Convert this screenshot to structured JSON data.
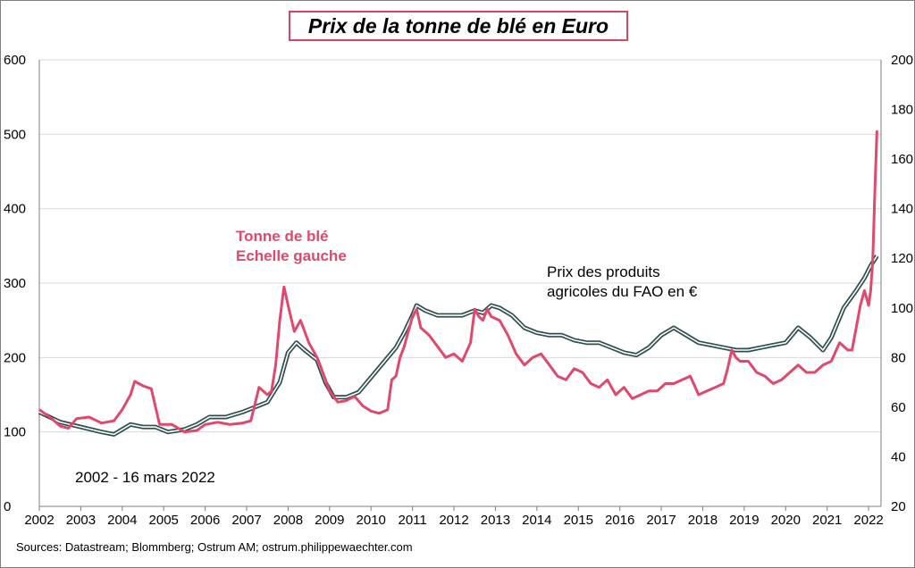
{
  "chart_data": {
    "type": "line",
    "title": "Prix de la tonne de blé en Euro",
    "period_label": "2002 - 16 mars 2022",
    "source": "Sources: Datastream; Blommberg;  Ostrum AM; ostrum.philippewaechter.com",
    "x_ticks": [
      "2002",
      "2003",
      "2004",
      "2005",
      "2006",
      "2007",
      "2008",
      "2009",
      "2010",
      "2011",
      "2012",
      "2013",
      "2014",
      "2015",
      "2016",
      "2017",
      "2018",
      "2019",
      "2020",
      "2021",
      "2022"
    ],
    "xlim": [
      2002,
      2022.3
    ],
    "y_left": {
      "ylim": [
        0,
        600
      ],
      "ticks": [
        "0",
        "100",
        "200",
        "300",
        "400",
        "500",
        "600"
      ]
    },
    "y_right": {
      "ylim": [
        20,
        200
      ],
      "ticks": [
        "20",
        "40",
        "60",
        "80",
        "100",
        "120",
        "140",
        "160",
        "180",
        "200"
      ]
    },
    "grid": true,
    "colors": {
      "wheat": "#e0486c",
      "fao_outer": "#2f4f4f",
      "fao_inner": "#ffffff",
      "title_border": "#d94466",
      "grid": "#d9d9d9"
    },
    "series": [
      {
        "name": "Tonne de blé",
        "axis": "left",
        "label_lines": [
          "Tonne de blé",
          "Echelle gauche"
        ],
        "x": [
          2002.0,
          2002.3,
          2002.5,
          2002.7,
          2002.9,
          2003.2,
          2003.5,
          2003.8,
          2004.0,
          2004.2,
          2004.3,
          2004.5,
          2004.7,
          2004.9,
          2005.2,
          2005.5,
          2005.8,
          2006.0,
          2006.3,
          2006.6,
          2006.9,
          2007.1,
          2007.3,
          2007.5,
          2007.6,
          2007.7,
          2007.8,
          2007.9,
          2008.0,
          2008.15,
          2008.3,
          2008.5,
          2008.7,
          2008.9,
          2009.0,
          2009.2,
          2009.4,
          2009.6,
          2009.8,
          2010.0,
          2010.2,
          2010.4,
          2010.5,
          2010.6,
          2010.7,
          2010.8,
          2010.9,
          2011.0,
          2011.1,
          2011.2,
          2011.4,
          2011.6,
          2011.8,
          2012.0,
          2012.2,
          2012.4,
          2012.5,
          2012.6,
          2012.7,
          2012.8,
          2012.9,
          2013.1,
          2013.3,
          2013.5,
          2013.7,
          2013.9,
          2014.1,
          2014.3,
          2014.5,
          2014.7,
          2014.9,
          2015.1,
          2015.3,
          2015.5,
          2015.7,
          2015.9,
          2016.1,
          2016.3,
          2016.5,
          2016.7,
          2016.9,
          2017.1,
          2017.3,
          2017.5,
          2017.7,
          2017.9,
          2018.1,
          2018.3,
          2018.5,
          2018.6,
          2018.7,
          2018.8,
          2018.9,
          2019.1,
          2019.3,
          2019.5,
          2019.7,
          2019.9,
          2020.1,
          2020.3,
          2020.5,
          2020.7,
          2020.9,
          2021.1,
          2021.3,
          2021.5,
          2021.6,
          2021.7,
          2021.8,
          2021.9,
          2022.0,
          2022.05,
          2022.1,
          2022.15,
          2022.2
        ],
        "values": [
          130,
          118,
          108,
          105,
          118,
          120,
          112,
          115,
          130,
          150,
          168,
          162,
          158,
          110,
          110,
          100,
          102,
          110,
          113,
          110,
          112,
          115,
          160,
          150,
          155,
          190,
          250,
          295,
          270,
          235,
          250,
          220,
          200,
          170,
          155,
          140,
          142,
          148,
          135,
          128,
          125,
          130,
          170,
          175,
          200,
          215,
          235,
          255,
          265,
          240,
          230,
          215,
          200,
          205,
          195,
          220,
          265,
          255,
          250,
          265,
          255,
          250,
          230,
          205,
          190,
          200,
          205,
          190,
          175,
          170,
          185,
          180,
          165,
          160,
          170,
          150,
          160,
          145,
          150,
          155,
          155,
          165,
          165,
          170,
          175,
          150,
          155,
          160,
          165,
          185,
          210,
          200,
          195,
          195,
          180,
          175,
          165,
          170,
          180,
          190,
          180,
          180,
          190,
          195,
          220,
          210,
          210,
          240,
          270,
          290,
          270,
          290,
          330,
          420,
          505
        ],
        "style": "wheat"
      },
      {
        "name": "Prix des produits agricoles du FAO en €",
        "axis": "right",
        "label_lines": [
          "Prix des produits",
          "agricoles du FAO en €"
        ],
        "x": [
          2002.0,
          2002.5,
          2003.0,
          2003.5,
          2003.8,
          2004.2,
          2004.5,
          2004.8,
          2005.1,
          2005.5,
          2005.8,
          2006.1,
          2006.5,
          2006.9,
          2007.2,
          2007.5,
          2007.8,
          2008.0,
          2008.2,
          2008.4,
          2008.7,
          2008.9,
          2009.1,
          2009.4,
          2009.7,
          2010.0,
          2010.3,
          2010.6,
          2010.8,
          2011.0,
          2011.1,
          2011.3,
          2011.6,
          2011.9,
          2012.2,
          2012.5,
          2012.7,
          2012.9,
          2013.1,
          2013.4,
          2013.7,
          2014.0,
          2014.3,
          2014.6,
          2014.9,
          2015.2,
          2015.5,
          2015.8,
          2016.1,
          2016.4,
          2016.7,
          2017.0,
          2017.3,
          2017.6,
          2017.9,
          2018.2,
          2018.5,
          2018.8,
          2019.1,
          2019.4,
          2019.7,
          2020.0,
          2020.3,
          2020.6,
          2020.9,
          2021.1,
          2021.4,
          2021.7,
          2021.9,
          2022.05,
          2022.2
        ],
        "values": [
          58,
          54,
          52,
          50,
          49,
          53,
          52,
          52,
          50,
          51,
          53,
          56,
          56,
          58,
          60,
          62,
          70,
          82,
          86,
          83,
          79,
          70,
          64,
          64,
          66,
          72,
          78,
          84,
          90,
          97,
          101,
          99,
          97,
          97,
          97,
          99,
          98,
          101,
          100,
          97,
          92,
          90,
          89,
          89,
          87,
          86,
          86,
          84,
          82,
          81,
          84,
          89,
          92,
          89,
          86,
          85,
          84,
          83,
          83,
          84,
          85,
          86,
          92,
          88,
          83,
          88,
          100,
          107,
          112,
          117,
          121
        ],
        "style": "fao"
      }
    ]
  }
}
